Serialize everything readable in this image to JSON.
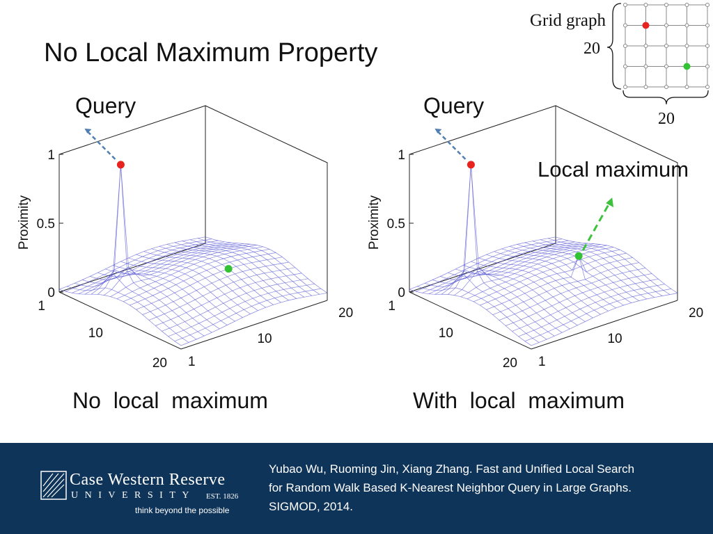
{
  "title": "No Local Maximum Property",
  "inset": {
    "label": "Grid graph",
    "rows_label": "20",
    "cols_label": "20",
    "red_node": {
      "row": 1,
      "col": 1
    },
    "green_node": {
      "row": 3,
      "col": 3
    }
  },
  "colors": {
    "query_point": "#e8221c",
    "other_point": "#33c233",
    "footer_bg": "#0f3459",
    "mesh": "#5b5bd6",
    "arrow_query": "#4f7fb2",
    "arrow_local": "#3ec23e"
  },
  "left_panel": {
    "query_label": "Query",
    "caption": "No  local  maximum"
  },
  "right_panel": {
    "query_label": "Query",
    "caption": "With  local  maximum",
    "local_max_label": "Local maximum"
  },
  "chart_data": [
    {
      "type": "surface",
      "zlabel": "Proximity",
      "z_ticks": [
        "0",
        "0.5",
        "1"
      ],
      "x_ticks": [
        "1",
        "10",
        "20"
      ],
      "y_ticks": [
        "1",
        "10",
        "20"
      ],
      "zlim": [
        0,
        1
      ],
      "grid_size": 20,
      "query_peak": 1.0,
      "local_maximum": false
    },
    {
      "type": "surface",
      "zlabel": "Proximity",
      "z_ticks": [
        "0",
        "0.5",
        "1"
      ],
      "x_ticks": [
        "1",
        "10",
        "20"
      ],
      "y_ticks": [
        "1",
        "10",
        "20"
      ],
      "zlim": [
        0,
        1
      ],
      "grid_size": 20,
      "query_peak": 1.0,
      "local_maximum": true,
      "local_max_value": 0.3
    }
  ],
  "footer": {
    "logo_name": "Case Western Reserve",
    "logo_university": "UNIVERSITY",
    "logo_est": "EST. 1826",
    "logo_tagline": "think beyond the possible",
    "citation_lines": [
      "Yubao Wu, Ruoming Jin, Xiang Zhang. Fast and Unified Local Search",
      "for Random Walk Based K-Nearest Neighbor Query in Large Graphs.",
      "SIGMOD, 2014."
    ]
  }
}
